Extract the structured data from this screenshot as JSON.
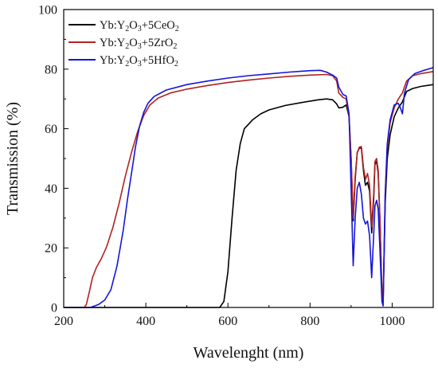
{
  "chart_data": {
    "type": "line",
    "title": "",
    "xlabel": "Wavelenght (nm)",
    "ylabel": "Transmission (%)",
    "xlim": [
      200,
      1100
    ],
    "ylim": [
      0,
      100
    ],
    "x_ticks": [
      200,
      400,
      600,
      800,
      1000
    ],
    "y_ticks": [
      0,
      20,
      40,
      60,
      80,
      100
    ],
    "grid": false,
    "legend_position": "top-left",
    "series": [
      {
        "name": "Yb:Y2O3+5CeO2",
        "legend": {
          "prefix": "Yb:Y",
          "sub1": "2",
          "mid": "O",
          "sub2": "3",
          "suffix": "+5CeO",
          "sub3": "2"
        },
        "color": "#000000",
        "points": [
          [
            200,
            0
          ],
          [
            580,
            0
          ],
          [
            590,
            2
          ],
          [
            600,
            12
          ],
          [
            610,
            30
          ],
          [
            620,
            46
          ],
          [
            630,
            55
          ],
          [
            640,
            60
          ],
          [
            660,
            63
          ],
          [
            680,
            65
          ],
          [
            700,
            66.3
          ],
          [
            740,
            67.8
          ],
          [
            780,
            68.8
          ],
          [
            820,
            69.7
          ],
          [
            840,
            70
          ],
          [
            855,
            69.7
          ],
          [
            865,
            68.3
          ],
          [
            870,
            67
          ],
          [
            880,
            67.2
          ],
          [
            888,
            68
          ],
          [
            895,
            64
          ],
          [
            900,
            50
          ],
          [
            905,
            29
          ],
          [
            910,
            43
          ],
          [
            915,
            52
          ],
          [
            920,
            53.5
          ],
          [
            925,
            53.5
          ],
          [
            930,
            46
          ],
          [
            935,
            41
          ],
          [
            940,
            42
          ],
          [
            945,
            39
          ],
          [
            950,
            25
          ],
          [
            955,
            36
          ],
          [
            958,
            48
          ],
          [
            962,
            49
          ],
          [
            966,
            45
          ],
          [
            970,
            30
          ],
          [
            975,
            5
          ],
          [
            978,
            2
          ],
          [
            983,
            35
          ],
          [
            988,
            50
          ],
          [
            995,
            58
          ],
          [
            1005,
            64
          ],
          [
            1015,
            67
          ],
          [
            1025,
            69
          ],
          [
            1035,
            72.5
          ],
          [
            1050,
            73.5
          ],
          [
            1070,
            74.2
          ],
          [
            1100,
            74.8
          ]
        ]
      },
      {
        "name": "Yb:Y2O3+5ZrO2",
        "legend": {
          "prefix": "Yb:Y",
          "sub1": "2",
          "mid": "O",
          "sub2": "3",
          "suffix": "+5ZrO",
          "sub3": "2"
        },
        "color": "#b22222",
        "points": [
          [
            200,
            0
          ],
          [
            250,
            0
          ],
          [
            255,
            1
          ],
          [
            262,
            5
          ],
          [
            270,
            10
          ],
          [
            280,
            13.5
          ],
          [
            292,
            16.5
          ],
          [
            305,
            20.5
          ],
          [
            320,
            27
          ],
          [
            335,
            35
          ],
          [
            350,
            44
          ],
          [
            365,
            52
          ],
          [
            380,
            59
          ],
          [
            395,
            64.5
          ],
          [
            410,
            68
          ],
          [
            430,
            70.3
          ],
          [
            460,
            72
          ],
          [
            500,
            73.3
          ],
          [
            550,
            74.5
          ],
          [
            600,
            75.5
          ],
          [
            650,
            76.3
          ],
          [
            700,
            77
          ],
          [
            750,
            77.6
          ],
          [
            800,
            78
          ],
          [
            840,
            78.2
          ],
          [
            855,
            77.8
          ],
          [
            865,
            76
          ],
          [
            870,
            72
          ],
          [
            880,
            70.5
          ],
          [
            888,
            70
          ],
          [
            895,
            64
          ],
          [
            900,
            50
          ],
          [
            905,
            30
          ],
          [
            910,
            44
          ],
          [
            915,
            52
          ],
          [
            920,
            53.8
          ],
          [
            925,
            54
          ],
          [
            930,
            47
          ],
          [
            935,
            43
          ],
          [
            940,
            45
          ],
          [
            945,
            41
          ],
          [
            950,
            27
          ],
          [
            955,
            38
          ],
          [
            958,
            49
          ],
          [
            962,
            50
          ],
          [
            966,
            46
          ],
          [
            970,
            30
          ],
          [
            975,
            5
          ],
          [
            978,
            2
          ],
          [
            983,
            38
          ],
          [
            988,
            54
          ],
          [
            995,
            62
          ],
          [
            1005,
            67
          ],
          [
            1015,
            70
          ],
          [
            1025,
            72
          ],
          [
            1035,
            76
          ],
          [
            1050,
            77.8
          ],
          [
            1070,
            78.5
          ],
          [
            1100,
            79.2
          ]
        ]
      },
      {
        "name": "Yb:Y2O3+5HfO2",
        "legend": {
          "prefix": "Yb:Y",
          "sub1": "2",
          "mid": "O",
          "sub2": "3",
          "suffix": "+5HfO",
          "sub3": "2"
        },
        "color": "#1515d8",
        "points": [
          [
            200,
            0
          ],
          [
            265,
            0
          ],
          [
            275,
            0.5
          ],
          [
            285,
            1
          ],
          [
            300,
            2.5
          ],
          [
            315,
            6
          ],
          [
            330,
            14
          ],
          [
            345,
            26
          ],
          [
            355,
            36
          ],
          [
            365,
            45
          ],
          [
            375,
            54
          ],
          [
            385,
            61
          ],
          [
            395,
            65.5
          ],
          [
            405,
            68.5
          ],
          [
            420,
            70.8
          ],
          [
            450,
            73
          ],
          [
            500,
            74.8
          ],
          [
            550,
            76
          ],
          [
            600,
            77
          ],
          [
            650,
            77.8
          ],
          [
            700,
            78.4
          ],
          [
            750,
            79
          ],
          [
            800,
            79.5
          ],
          [
            825,
            79.6
          ],
          [
            840,
            79
          ],
          [
            855,
            78
          ],
          [
            865,
            77
          ],
          [
            870,
            74
          ],
          [
            880,
            71.5
          ],
          [
            888,
            71
          ],
          [
            895,
            65
          ],
          [
            900,
            40
          ],
          [
            905,
            14
          ],
          [
            910,
            30
          ],
          [
            915,
            40
          ],
          [
            920,
            42
          ],
          [
            925,
            38
          ],
          [
            930,
            30
          ],
          [
            935,
            28
          ],
          [
            940,
            29
          ],
          [
            945,
            24
          ],
          [
            950,
            10
          ],
          [
            955,
            24
          ],
          [
            958,
            34
          ],
          [
            962,
            36
          ],
          [
            966,
            33
          ],
          [
            970,
            20
          ],
          [
            975,
            2
          ],
          [
            978,
            0.5
          ],
          [
            983,
            38
          ],
          [
            988,
            55
          ],
          [
            995,
            63
          ],
          [
            1005,
            68
          ],
          [
            1015,
            68.5
          ],
          [
            1020,
            67
          ],
          [
            1025,
            65
          ],
          [
            1030,
            72
          ],
          [
            1040,
            76.5
          ],
          [
            1055,
            78.5
          ],
          [
            1075,
            79.5
          ],
          [
            1100,
            80.5
          ]
        ]
      }
    ]
  }
}
